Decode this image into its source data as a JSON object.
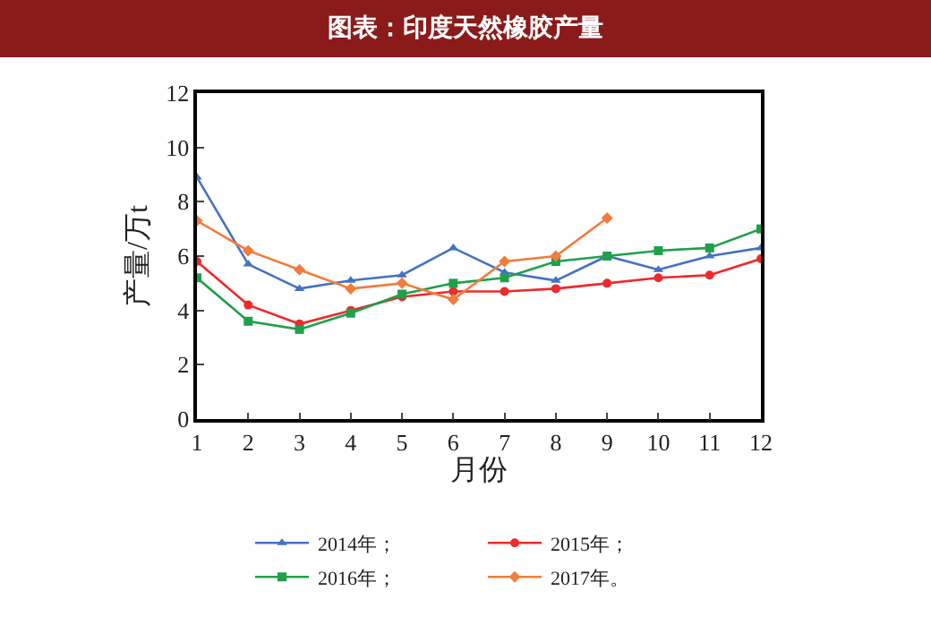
{
  "chart_data": {
    "type": "line",
    "title": "图表：印度天然橡胶产量",
    "xlabel": "月份",
    "ylabel": "产量/万t",
    "x": [
      1,
      2,
      3,
      4,
      5,
      6,
      7,
      8,
      9,
      10,
      11,
      12
    ],
    "xlim": [
      1,
      12
    ],
    "xticks": [
      1,
      2,
      3,
      4,
      5,
      6,
      7,
      8,
      9,
      10,
      11,
      12
    ],
    "ylim": [
      0,
      12
    ],
    "yticks": [
      0,
      2,
      4,
      6,
      8,
      10,
      12
    ],
    "grid": false,
    "legend": "bottom",
    "series": [
      {
        "name": "2014年；",
        "color": "#4472c4",
        "marker": "triangle",
        "values": [
          8.9,
          5.7,
          4.8,
          5.1,
          5.3,
          6.3,
          5.4,
          5.1,
          6.0,
          5.5,
          6.0,
          6.3
        ]
      },
      {
        "name": "2015年；",
        "color": "#ee2a2a",
        "marker": "circle",
        "values": [
          5.8,
          4.2,
          3.5,
          4.0,
          4.5,
          4.7,
          4.7,
          4.8,
          5.0,
          5.2,
          5.3,
          5.9
        ]
      },
      {
        "name": "2016年；",
        "color": "#1fa04a",
        "marker": "square",
        "values": [
          5.2,
          3.6,
          3.3,
          3.9,
          4.6,
          5.0,
          5.2,
          5.8,
          6.0,
          6.2,
          6.3,
          7.0
        ]
      },
      {
        "name": "2017年。",
        "color": "#f27c3c",
        "marker": "diamond",
        "values": [
          7.3,
          6.2,
          5.5,
          4.8,
          5.0,
          4.4,
          5.8,
          6.0,
          7.4,
          null,
          null,
          null
        ]
      }
    ]
  }
}
